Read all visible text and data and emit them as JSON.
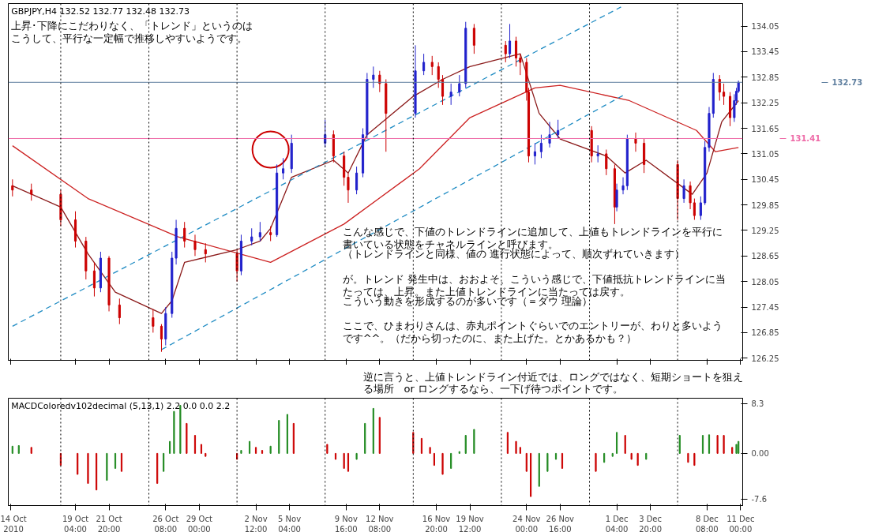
{
  "chart_data": [
    {
      "type": "candlestick",
      "title": "GBPJPY,H4  132.52 132.77 132.48 132.73",
      "annotations": [
        "上昇･下降にこだわりなく、「トレンド」というのはこうして、平行な一定幅で推移しやすいようです。",
        "こんな感じで、下値のトレンドラインに追加して、上値もトレンドラインを平行に書いている状態をチャネルラインと呼びます。",
        "（トレンドラインと同様、値の 進行状態によって、順次ずれていきます）",
        "が。トレンド 発生中は、おおよそ、こういう感じで、下値抵抗トレンドラインに当たっては、上昇。また上値トレンドラインに当たっては戻す。",
        "こういう動きを形成するのが多いです（＝ダウ 理論）",
        "ここで、ひまわりさんは、赤丸ポイントぐらいでのエントリーが、わりと多いようです^^。（だから切ったのに、また上げた。とかあるかも？）"
      ],
      "x": [
        "2010-10-14T04:00",
        "2010-10-15T16:00",
        "2010-10-18T00:00",
        "2010-10-19T04:00",
        "2010-10-20T00:00",
        "2010-10-20T16:00",
        "2010-10-21T04:00",
        "2010-10-21T20:00",
        "2010-10-22T16:00",
        "2010-10-25T08:00",
        "2010-10-26T00:00",
        "2010-10-26T08:00",
        "2010-10-26T20:00",
        "2010-10-27T04:00",
        "2010-10-27T20:00",
        "2010-10-28T16:00",
        "2010-10-29T12:00",
        "2010-11-01T00:00",
        "2010-11-01T08:00",
        "2010-11-02T04:00",
        "2010-11-02T20:00",
        "2010-11-03T16:00",
        "2010-11-04T04:00",
        "2010-11-04T16:00",
        "2010-11-05T08:00",
        "2010-11-08T00:00",
        "2010-11-08T16:00",
        "2010-11-09T12:00",
        "2010-11-09T20:00",
        "2010-11-10T12:00",
        "2010-11-11T00:00",
        "2010-11-11T08:00",
        "2010-11-11T20:00",
        "2010-11-12T08:00",
        "2010-11-12T20:00",
        "2010-11-15T04:00",
        "2010-11-15T20:00",
        "2010-11-16T12:00",
        "2010-11-17T00:00",
        "2010-11-17T08:00",
        "2010-11-18T00:00",
        "2010-11-18T16:00",
        "2010-11-19T04:00",
        "2010-11-19T20:00",
        "2010-11-22T08:00",
        "2010-11-22T16:00",
        "2010-11-23T04:00",
        "2010-11-23T12:00",
        "2010-11-24T00:00",
        "2010-11-24T04:00",
        "2010-11-24T16:00",
        "2010-11-25T04:00",
        "2010-11-25T20:00",
        "2010-11-26T12:00",
        "2010-11-29T04:00",
        "2010-11-29T16:00",
        "2010-11-30T08:00",
        "2010-12-01T00:00",
        "2010-12-01T04:00",
        "2010-12-01T16:00",
        "2010-12-02T00:00",
        "2010-12-02T16:00",
        "2010-12-03T08:00",
        "2010-12-06T00:00",
        "2010-12-06T12:00",
        "2010-12-07T00:00",
        "2010-12-07T08:00",
        "2010-12-07T20:00",
        "2010-12-08T04:00",
        "2010-12-08T12:00",
        "2010-12-08T20:00",
        "2010-12-09T08:00",
        "2010-12-09T16:00",
        "2010-12-10T04:00",
        "2010-12-10T12:00",
        "2010-12-10T16:00",
        "2010-12-10T20:00"
      ],
      "ohlc": [
        [
          130.3,
          130.45,
          130.05,
          130.2
        ],
        [
          130.2,
          130.35,
          129.95,
          130.1
        ],
        [
          130.1,
          130.2,
          129.35,
          129.5
        ],
        [
          129.5,
          129.7,
          128.85,
          129.0
        ],
        [
          129.0,
          129.1,
          128.1,
          128.3
        ],
        [
          128.3,
          128.5,
          127.7,
          127.9
        ],
        [
          127.9,
          128.75,
          127.8,
          128.6
        ],
        [
          128.6,
          128.65,
          127.35,
          127.5
        ],
        [
          127.5,
          127.65,
          127.05,
          127.2
        ],
        [
          127.2,
          127.4,
          126.85,
          127.0
        ],
        [
          127.0,
          127.05,
          126.4,
          126.7
        ],
        [
          126.7,
          127.45,
          126.55,
          127.3
        ],
        [
          127.3,
          128.75,
          127.2,
          128.6
        ],
        [
          128.6,
          129.5,
          128.45,
          129.3
        ],
        [
          129.3,
          129.45,
          128.85,
          129.0
        ],
        [
          129.0,
          129.15,
          128.65,
          128.8
        ],
        [
          128.8,
          128.95,
          128.5,
          128.7
        ],
        [
          128.7,
          128.8,
          128.05,
          128.3
        ],
        [
          128.3,
          129.15,
          128.2,
          129.0
        ],
        [
          129.0,
          129.3,
          128.9,
          129.1
        ],
        [
          129.1,
          129.45,
          129.0,
          129.2
        ],
        [
          129.2,
          129.35,
          129.0,
          129.15
        ],
        [
          129.15,
          130.8,
          129.1,
          130.6
        ],
        [
          130.6,
          130.95,
          130.45,
          130.7
        ],
        [
          130.7,
          131.5,
          130.6,
          131.3
        ],
        [
          131.3,
          131.85,
          131.2,
          131.5
        ],
        [
          131.5,
          131.6,
          130.85,
          131.0
        ],
        [
          131.0,
          131.1,
          130.3,
          130.5
        ],
        [
          130.5,
          130.6,
          129.9,
          130.2
        ],
        [
          130.2,
          130.75,
          130.1,
          130.6
        ],
        [
          130.6,
          131.65,
          130.5,
          131.5
        ],
        [
          131.5,
          132.95,
          131.4,
          132.8
        ],
        [
          132.8,
          133.1,
          132.6,
          132.9
        ],
        [
          132.9,
          133.0,
          132.5,
          132.7
        ],
        [
          132.7,
          132.8,
          131.1,
          132.0
        ],
        [
          132.0,
          133.6,
          131.9,
          133.0
        ],
        [
          133.0,
          133.4,
          132.9,
          133.2
        ],
        [
          133.2,
          133.35,
          132.9,
          133.1
        ],
        [
          133.1,
          133.2,
          132.6,
          132.8
        ],
        [
          132.8,
          132.9,
          132.2,
          132.4
        ],
        [
          132.4,
          132.7,
          132.2,
          132.5
        ],
        [
          132.5,
          132.9,
          132.4,
          132.7
        ],
        [
          132.7,
          134.15,
          132.6,
          134.0
        ],
        [
          134.0,
          134.1,
          133.4,
          133.6
        ],
        [
          133.6,
          133.7,
          133.2,
          133.4
        ],
        [
          133.4,
          134.1,
          133.3,
          133.7
        ],
        [
          133.7,
          133.8,
          133.1,
          133.3
        ],
        [
          133.3,
          133.4,
          132.9,
          133.2
        ],
        [
          133.2,
          133.3,
          132.3,
          132.5
        ],
        [
          132.5,
          132.6,
          130.85,
          131.0
        ],
        [
          131.0,
          131.3,
          130.8,
          131.1
        ],
        [
          131.1,
          131.5,
          130.95,
          131.3
        ],
        [
          131.3,
          131.8,
          131.2,
          131.5
        ],
        [
          131.5,
          131.85,
          131.4,
          131.6
        ],
        [
          131.6,
          131.7,
          130.85,
          131.0
        ],
        [
          131.0,
          131.25,
          130.85,
          131.05
        ],
        [
          131.05,
          131.15,
          130.55,
          130.7
        ],
        [
          130.7,
          130.8,
          129.4,
          129.8
        ],
        [
          129.8,
          130.35,
          129.7,
          130.2
        ],
        [
          130.2,
          130.5,
          130.1,
          130.3
        ],
        [
          130.3,
          131.5,
          130.2,
          131.4
        ],
        [
          131.4,
          131.55,
          131.1,
          131.3
        ],
        [
          131.3,
          131.4,
          130.6,
          130.8
        ],
        [
          130.8,
          130.9,
          129.5,
          130.0
        ],
        [
          130.0,
          130.45,
          129.9,
          130.3
        ],
        [
          130.3,
          130.4,
          129.75,
          129.9
        ],
        [
          129.9,
          130.0,
          129.5,
          129.6
        ],
        [
          129.6,
          130.05,
          129.5,
          129.9
        ],
        [
          129.9,
          131.35,
          129.85,
          131.2
        ],
        [
          131.2,
          132.15,
          131.1,
          132.0
        ],
        [
          132.0,
          132.95,
          131.9,
          132.8
        ],
        [
          132.8,
          132.9,
          132.3,
          132.5
        ],
        [
          132.5,
          132.7,
          132.2,
          132.4
        ],
        [
          132.4,
          132.5,
          131.7,
          131.9
        ],
        [
          131.9,
          132.45,
          131.8,
          132.3
        ],
        [
          132.3,
          132.6,
          132.2,
          132.52
        ],
        [
          132.52,
          132.77,
          132.48,
          132.73
        ]
      ],
      "colors": [
        "#cc0000",
        "#cc0000",
        "#cc0000",
        "#cc0000",
        "#cc0000",
        "#cc0000",
        "#2222cc",
        "#cc0000",
        "#cc0000",
        "#cc0000",
        "#cc0000",
        "#2222cc",
        "#2222cc",
        "#2222cc",
        "#cc0000",
        "#cc0000",
        "#cc0000",
        "#cc0000",
        "#2222cc",
        "#2222cc",
        "#2222cc",
        "#cc0000",
        "#2222cc",
        "#2222cc",
        "#2222cc",
        "#2222cc",
        "#cc0000",
        "#cc0000",
        "#cc0000",
        "#2222cc",
        "#2222cc",
        "#2222cc",
        "#2222cc",
        "#cc0000",
        "#cc0000",
        "#2222cc",
        "#2222cc",
        "#cc0000",
        "#cc0000",
        "#cc0000",
        "#2222cc",
        "#2222cc",
        "#2222cc",
        "#cc0000",
        "#cc0000",
        "#2222cc",
        "#cc0000",
        "#cc0000",
        "#cc0000",
        "#cc0000",
        "#2222cc",
        "#2222cc",
        "#2222cc",
        "#2222cc",
        "#cc0000",
        "#2222cc",
        "#cc0000",
        "#cc0000",
        "#2222cc",
        "#2222cc",
        "#2222cc",
        "#cc0000",
        "#cc0000",
        "#cc0000",
        "#2222cc",
        "#cc0000",
        "#cc0000",
        "#2222cc",
        "#2222cc",
        "#2222cc",
        "#2222cc",
        "#cc0000",
        "#cc0000",
        "#cc0000",
        "#2222cc",
        "#2222cc",
        "#2222cc"
      ],
      "series": [
        {
          "type": "line",
          "color": "#cc2222",
          "x": [
            "2010-10-14T04:00",
            "2010-10-20T04:00",
            "2010-10-27T08:00",
            "2010-11-03T16:00",
            "2010-11-09T12:00",
            "2010-11-15T12:00",
            "2010-11-19T12:00",
            "2010-11-24T16:00",
            "2010-11-26T16:00",
            "2010-12-02T04:00",
            "2010-12-07T12:00",
            "2010-12-09T00:00",
            "2010-12-10T20:00"
          ],
          "values": [
            131.24,
            130.0,
            129.1,
            128.5,
            129.4,
            130.7,
            131.9,
            132.6,
            132.66,
            132.3,
            131.6,
            131.1,
            131.2
          ]
        },
        {
          "type": "line",
          "color": "#8b1a1a",
          "x": [
            "2010-10-14T04:00",
            "2010-10-18T00:00",
            "2010-10-20T04:00",
            "2010-10-22T08:00",
            "2010-10-26T00:00",
            "2010-10-26T20:00",
            "2010-10-27T20:00",
            "2010-11-01T00:00",
            "2010-11-02T20:00",
            "2010-11-03T16:00",
            "2010-11-05T08:00",
            "2010-11-08T16:00",
            "2010-11-09T20:00",
            "2010-11-11T08:00",
            "2010-11-15T00:00",
            "2010-11-17T08:00",
            "2010-11-19T12:00",
            "2010-11-23T12:00",
            "2010-11-25T00:00",
            "2010-11-26T16:00",
            "2010-11-30T08:00",
            "2010-12-01T20:00",
            "2010-12-03T12:00",
            "2010-12-07T04:00",
            "2010-12-08T08:00",
            "2010-12-09T12:00",
            "2010-12-10T20:00"
          ],
          "values": [
            130.3,
            129.8,
            128.7,
            127.8,
            127.3,
            127.6,
            128.5,
            128.8,
            129.0,
            129.3,
            130.5,
            130.9,
            130.6,
            131.5,
            132.4,
            132.8,
            133.1,
            133.4,
            132.0,
            131.4,
            131.0,
            130.6,
            130.9,
            130.1,
            130.6,
            131.8,
            132.3
          ]
        },
        {
          "type": "line",
          "color": "#1e8bc3",
          "line_style": "dashed",
          "x": [
            "2010-10-14T04:00",
            "2010-12-01T12:00"
          ],
          "values": [
            127.0,
            134.5
          ]
        },
        {
          "type": "line",
          "color": "#1e8bc3",
          "line_style": "dashed",
          "x": [
            "2010-10-26T00:00",
            "2010-12-01T20:00"
          ],
          "values": [
            126.45,
            132.45
          ]
        },
        {
          "type": "scatter",
          "color": "#cc0000",
          "marker": "circle",
          "x": [
            "2010-11-03T16:00"
          ],
          "values": [
            131.15
          ]
        }
      ],
      "ref_lines": [
        {
          "axis": "y",
          "value": 131.41,
          "label": "131.41",
          "color": "#ee6aa7"
        },
        {
          "axis": "y",
          "value": 132.73,
          "label": "132.73",
          "color": "#5f7f9f"
        },
        {
          "axis": "x",
          "value": "2010-10-18T00:00",
          "color": "#000000",
          "line_style": "dotted"
        },
        {
          "axis": "x",
          "value": "2010-10-25T00:00",
          "color": "#000000",
          "line_style": "dotted"
        },
        {
          "axis": "x",
          "value": "2010-11-01T00:00",
          "color": "#000000",
          "line_style": "dotted"
        },
        {
          "axis": "x",
          "value": "2010-11-08T00:00",
          "color": "#000000",
          "line_style": "dotted"
        },
        {
          "axis": "x",
          "value": "2010-11-15T00:00",
          "color": "#000000",
          "line_style": "dotted"
        },
        {
          "axis": "x",
          "value": "2010-11-22T00:00",
          "color": "#000000",
          "line_style": "dotted"
        },
        {
          "axis": "x",
          "value": "2010-11-29T00:00",
          "color": "#000000",
          "line_style": "dotted"
        },
        {
          "axis": "x",
          "value": "2010-12-06T00:00",
          "color": "#000000",
          "line_style": "dotted"
        }
      ],
      "xlim": [
        "2010-10-13T20:00",
        "2010-12-11T04:00"
      ],
      "ylim": [
        126.2,
        134.58
      ],
      "xticks": [
        {
          "value": "2010-10-14T00:00",
          "label": "14 Oct 2010"
        },
        {
          "value": "2010-10-19T04:00",
          "label": "19 Oct 04:00"
        },
        {
          "value": "2010-10-21T20:00",
          "label": "21 Oct 20:00"
        },
        {
          "value": "2010-10-26T08:00",
          "label": "26 Oct 08:00"
        },
        {
          "value": "2010-10-29T00:00",
          "label": "29 Oct 00:00"
        },
        {
          "value": "2010-11-02T12:00",
          "label": "2 Nov 12:00"
        },
        {
          "value": "2010-11-05T04:00",
          "label": "5 Nov 04:00"
        },
        {
          "value": "2010-11-09T16:00",
          "label": "9 Nov 16:00"
        },
        {
          "value": "2010-11-12T08:00",
          "label": "12 Nov 08:00"
        },
        {
          "value": "2010-11-16T20:00",
          "label": "16 Nov 20:00"
        },
        {
          "value": "2010-11-19T12:00",
          "label": "19 Nov 12:00"
        },
        {
          "value": "2010-11-24T00:00",
          "label": "24 Nov 00:00"
        },
        {
          "value": "2010-11-26T16:00",
          "label": "26 Nov 16:00"
        },
        {
          "value": "2010-12-01T04:00",
          "label": "1 Dec 04:00"
        },
        {
          "value": "2010-12-03T20:00",
          "label": "3 Dec 20:00"
        },
        {
          "value": "2010-12-08T08:00",
          "label": "8 Dec 08:00"
        },
        {
          "value": "2010-12-11T00:00",
          "label": "11 Dec 00:00"
        }
      ],
      "yticks": [
        126.25,
        126.85,
        127.45,
        128.05,
        128.65,
        129.25,
        129.85,
        130.45,
        131.05,
        131.65,
        132.25,
        132.85,
        133.45,
        134.05
      ],
      "tick_labels": "y"
    },
    {
      "type": "bar",
      "title": "MACDColoredv102decimal (5,13,1) 2.2 0.0 0.0 2.2",
      "annotations": [
        "逆に言うと、上値トレンドライン付近では、ロングではなく、短期ショートを狙える場所　or ロングするなら、一下げ待つポイントです。"
      ],
      "x": [
        "2010-10-14T04:00",
        "2010-10-14T16:00",
        "2010-10-15T16:00",
        "2010-10-18T00:00",
        "2010-10-19T08:00",
        "2010-10-20T04:00",
        "2010-10-20T20:00",
        "2010-10-21T16:00",
        "2010-10-22T08:00",
        "2010-10-22T20:00",
        "2010-10-25T16:00",
        "2010-10-26T04:00",
        "2010-10-26T16:00",
        "2010-10-27T00:00",
        "2010-10-27T12:00",
        "2010-10-28T00:00",
        "2010-10-28T16:00",
        "2010-10-29T04:00",
        "2010-10-29T12:00",
        "2010-11-01T00:00",
        "2010-11-01T08:00",
        "2010-11-02T00:00",
        "2010-11-02T12:00",
        "2010-11-03T00:00",
        "2010-11-03T16:00",
        "2010-11-04T08:00",
        "2010-11-05T00:00",
        "2010-11-05T12:00",
        "2010-11-08T04:00",
        "2010-11-08T20:00",
        "2010-11-09T12:00",
        "2010-11-09T20:00",
        "2010-11-10T12:00",
        "2010-11-11T04:00",
        "2010-11-11T20:00",
        "2010-11-12T08:00",
        "2010-11-15T00:00",
        "2010-11-15T16:00",
        "2010-11-16T08:00",
        "2010-11-16T16:00",
        "2010-11-17T08:00",
        "2010-11-18T00:00",
        "2010-11-18T16:00",
        "2010-11-19T04:00",
        "2010-11-19T20:00",
        "2010-11-22T12:00",
        "2010-11-23T04:00",
        "2010-11-23T12:00",
        "2010-11-24T00:00",
        "2010-11-24T08:00",
        "2010-11-25T00:00",
        "2010-11-25T16:00",
        "2010-11-26T08:00",
        "2010-11-26T20:00",
        "2010-11-29T12:00",
        "2010-11-30T04:00",
        "2010-11-30T20:00",
        "2010-12-01T04:00",
        "2010-12-01T20:00",
        "2010-12-02T08:00",
        "2010-12-02T20:00",
        "2010-12-03T12:00",
        "2010-12-06T04:00",
        "2010-12-06T20:00",
        "2010-12-07T08:00",
        "2010-12-08T00:00",
        "2010-12-08T12:00",
        "2010-12-09T04:00",
        "2010-12-09T16:00",
        "2010-12-10T08:00",
        "2010-12-10T16:00",
        "2010-12-10T20:00"
      ],
      "values": [
        1.2,
        1.3,
        1.0,
        -2.0,
        -3.5,
        -5.0,
        -6.1,
        -4.5,
        -2.5,
        -3.0,
        -5.0,
        -3.0,
        2.0,
        7.0,
        8.0,
        5.0,
        3.0,
        1.5,
        -0.5,
        -1.0,
        0.5,
        2.0,
        1.0,
        0.5,
        1.2,
        5.5,
        6.5,
        5.0,
        1.5,
        -1.0,
        -2.5,
        -3.0,
        -1.0,
        5.0,
        7.5,
        6.0,
        3.5,
        2.5,
        1.0,
        -2.0,
        -3.5,
        -2.5,
        0.3,
        3.0,
        4.0,
        3.5,
        2.0,
        1.0,
        -3.0,
        -7.2,
        -5.5,
        -3.0,
        -1.0,
        -2.5,
        -3.0,
        -1.5,
        -0.5,
        3.5,
        3.0,
        -1.0,
        -2.0,
        -1.0,
        3.0,
        -1.5,
        -2.0,
        3.0,
        3.1,
        3.0,
        3.0,
        1.0,
        1.5,
        2.0
      ],
      "colors": [
        "#228b22",
        "#228b22",
        "#cc0000",
        "#cc0000",
        "#cc0000",
        "#cc0000",
        "#cc0000",
        "#228b22",
        "#228b22",
        "#cc0000",
        "#cc0000",
        "#228b22",
        "#228b22",
        "#228b22",
        "#228b22",
        "#cc0000",
        "#cc0000",
        "#cc0000",
        "#cc0000",
        "#cc0000",
        "#228b22",
        "#228b22",
        "#cc0000",
        "#cc0000",
        "#228b22",
        "#228b22",
        "#228b22",
        "#cc0000",
        "#cc0000",
        "#cc0000",
        "#cc0000",
        "#cc0000",
        "#228b22",
        "#228b22",
        "#228b22",
        "#cc0000",
        "#cc0000",
        "#cc0000",
        "#cc0000",
        "#cc0000",
        "#cc0000",
        "#228b22",
        "#228b22",
        "#228b22",
        "#228b22",
        "#cc0000",
        "#cc0000",
        "#cc0000",
        "#cc0000",
        "#cc0000",
        "#228b22",
        "#228b22",
        "#228b22",
        "#cc0000",
        "#cc0000",
        "#228b22",
        "#228b22",
        "#228b22",
        "#cc0000",
        "#cc0000",
        "#cc0000",
        "#228b22",
        "#228b22",
        "#cc0000",
        "#cc0000",
        "#228b22",
        "#228b22",
        "#cc0000",
        "#cc0000",
        "#cc0000",
        "#228b22",
        "#228b22"
      ],
      "ref_lines": [
        {
          "axis": "x",
          "value": "2010-10-18T00:00",
          "color": "#000000",
          "line_style": "dotted"
        },
        {
          "axis": "x",
          "value": "2010-10-25T00:00",
          "color": "#000000",
          "line_style": "dotted"
        },
        {
          "axis": "x",
          "value": "2010-11-01T00:00",
          "color": "#000000",
          "line_style": "dotted"
        },
        {
          "axis": "x",
          "value": "2010-11-08T00:00",
          "color": "#000000",
          "line_style": "dotted"
        },
        {
          "axis": "x",
          "value": "2010-11-15T00:00",
          "color": "#000000",
          "line_style": "dotted"
        },
        {
          "axis": "x",
          "value": "2010-11-22T00:00",
          "color": "#000000",
          "line_style": "dotted"
        },
        {
          "axis": "x",
          "value": "2010-11-29T00:00",
          "color": "#000000",
          "line_style": "dotted"
        },
        {
          "axis": "x",
          "value": "2010-12-06T00:00",
          "color": "#000000",
          "line_style": "dotted"
        }
      ],
      "xlim": [
        "2010-10-13T20:00",
        "2010-12-11T04:00"
      ],
      "ylim": [
        -8.7,
        9.2
      ],
      "xticks": [
        {
          "value": "2010-10-14T00:00",
          "label": "14 Oct 2010"
        },
        {
          "value": "2010-10-19T04:00",
          "label": "19 Oct 04:00"
        },
        {
          "value": "2010-10-21T20:00",
          "label": "21 Oct 20:00"
        },
        {
          "value": "2010-10-26T08:00",
          "label": "26 Oct 08:00"
        },
        {
          "value": "2010-10-29T00:00",
          "label": "29 Oct 00:00"
        },
        {
          "value": "2010-11-02T12:00",
          "label": "2 Nov 12:00"
        },
        {
          "value": "2010-11-05T04:00",
          "label": "5 Nov 04:00"
        },
        {
          "value": "2010-11-09T16:00",
          "label": "9 Nov 16:00"
        },
        {
          "value": "2010-11-12T08:00",
          "label": "12 Nov 08:00"
        },
        {
          "value": "2010-11-16T20:00",
          "label": "16 Nov 20:00"
        },
        {
          "value": "2010-11-19T12:00",
          "label": "19 Nov 12:00"
        },
        {
          "value": "2010-11-24T00:00",
          "label": "24 Nov 00:00"
        },
        {
          "value": "2010-11-26T16:00",
          "label": "26 Nov 16:00"
        },
        {
          "value": "2010-12-01T04:00",
          "label": "1 Dec 04:00"
        },
        {
          "value": "2010-12-03T20:00",
          "label": "3 Dec 20:00"
        },
        {
          "value": "2010-12-08T08:00",
          "label": "8 Dec 08:00"
        },
        {
          "value": "2010-12-11T00:00",
          "label": "11 Dec 00:00"
        }
      ],
      "yticks": [
        8.3,
        {
          "value": 0,
          "label": "0.00"
        },
        -7.6
      ]
    }
  ]
}
